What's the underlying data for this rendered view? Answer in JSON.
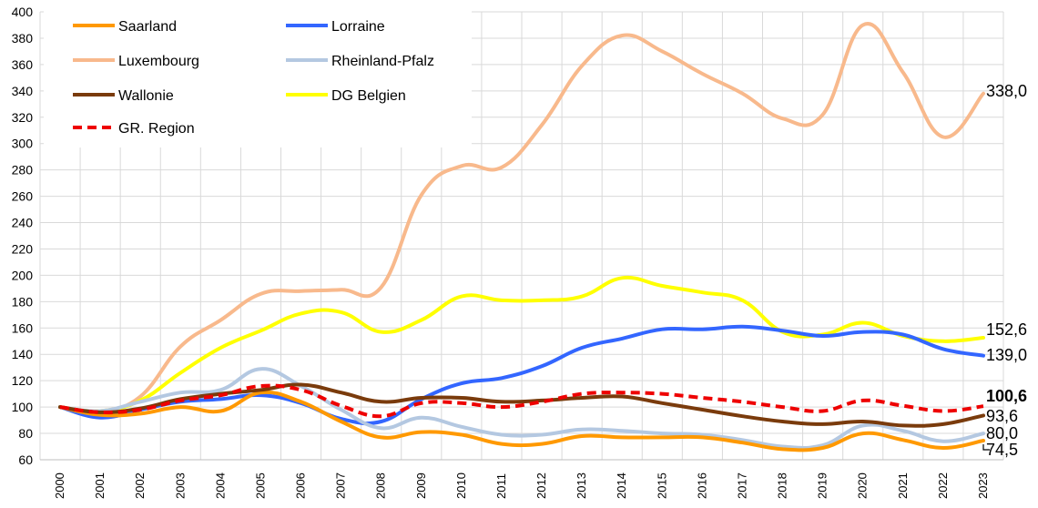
{
  "chart_data": {
    "type": "line",
    "title": "",
    "xlabel": "",
    "ylabel": "",
    "ylim": [
      60,
      400
    ],
    "y_ticks": [
      60,
      80,
      100,
      120,
      140,
      160,
      180,
      200,
      220,
      240,
      260,
      280,
      300,
      320,
      340,
      360,
      380,
      400
    ],
    "grid": "on",
    "legend_placement": "top-left",
    "categories": [
      "2000",
      "2001",
      "2002",
      "2003",
      "2004",
      "2005",
      "2006",
      "2007",
      "2008",
      "2009",
      "2010",
      "2011",
      "2012",
      "2013",
      "2014",
      "2015",
      "2016",
      "2017",
      "2018",
      "2019",
      "2020",
      "2021",
      "2022",
      "2023"
    ],
    "series": [
      {
        "name": "Saarland",
        "color": "#FF9900",
        "dash": false,
        "end_label": "74,5",
        "end_bold": false,
        "values": [
          100,
          94,
          95,
          100,
          97,
          111,
          104,
          89,
          77,
          81,
          79,
          72,
          72,
          78,
          77,
          77,
          77,
          73,
          68,
          69,
          80,
          75,
          69,
          74.5
        ]
      },
      {
        "name": "Lorraine",
        "color": "#3366FF",
        "dash": false,
        "end_label": "139,0",
        "end_bold": false,
        "values": [
          100,
          92,
          98,
          104,
          106,
          109,
          103,
          91,
          89,
          106,
          118,
          122,
          131,
          145,
          152,
          159,
          159,
          161,
          158,
          154,
          157,
          155,
          144,
          139.0
        ]
      },
      {
        "name": "Luxembourg",
        "color": "#F8B98C",
        "dash": false,
        "end_label": "338,0",
        "end_bold": false,
        "values": [
          100,
          97,
          108,
          146,
          166,
          186,
          188,
          189,
          191,
          261,
          283,
          282,
          314,
          359,
          382,
          370,
          353,
          338,
          319,
          322,
          390,
          354,
          305,
          338.0
        ]
      },
      {
        "name": "Rheinland-Pfalz",
        "color": "#B4C8E1",
        "dash": false,
        "end_label": "80,0",
        "end_bold": false,
        "values": [
          100,
          97,
          104,
          111,
          113,
          129,
          116,
          98,
          84,
          92,
          85,
          79,
          79,
          83,
          82,
          80,
          79,
          75,
          70,
          71,
          86,
          82,
          74,
          80.0
        ]
      },
      {
        "name": "Wallonie",
        "color": "#7A3B0C",
        "dash": false,
        "end_label": "93,6",
        "end_bold": false,
        "values": [
          100,
          96,
          99,
          106,
          110,
          113,
          117,
          111,
          104,
          107,
          107,
          104,
          105,
          107,
          108,
          103,
          98,
          93,
          89,
          87,
          89,
          86,
          87,
          93.6
        ]
      },
      {
        "name": "DG Belgien",
        "color": "#FFFF00",
        "dash": false,
        "end_label": "152,6",
        "end_bold": false,
        "values": [
          100,
          97,
          105,
          126,
          145,
          158,
          171,
          172,
          157,
          166,
          184,
          181,
          181,
          184,
          198,
          192,
          187,
          181,
          157,
          155,
          164,
          154,
          150,
          152.6
        ]
      },
      {
        "name": "GR. Region",
        "color": "#EE0000",
        "dash": true,
        "end_label": "100,6",
        "end_bold": true,
        "values": [
          100,
          96,
          98,
          105,
          109,
          116,
          113,
          101,
          93,
          103,
          103,
          100,
          104,
          110,
          111,
          110,
          107,
          104,
          100,
          97,
          105,
          101,
          97,
          100.6
        ]
      }
    ]
  }
}
